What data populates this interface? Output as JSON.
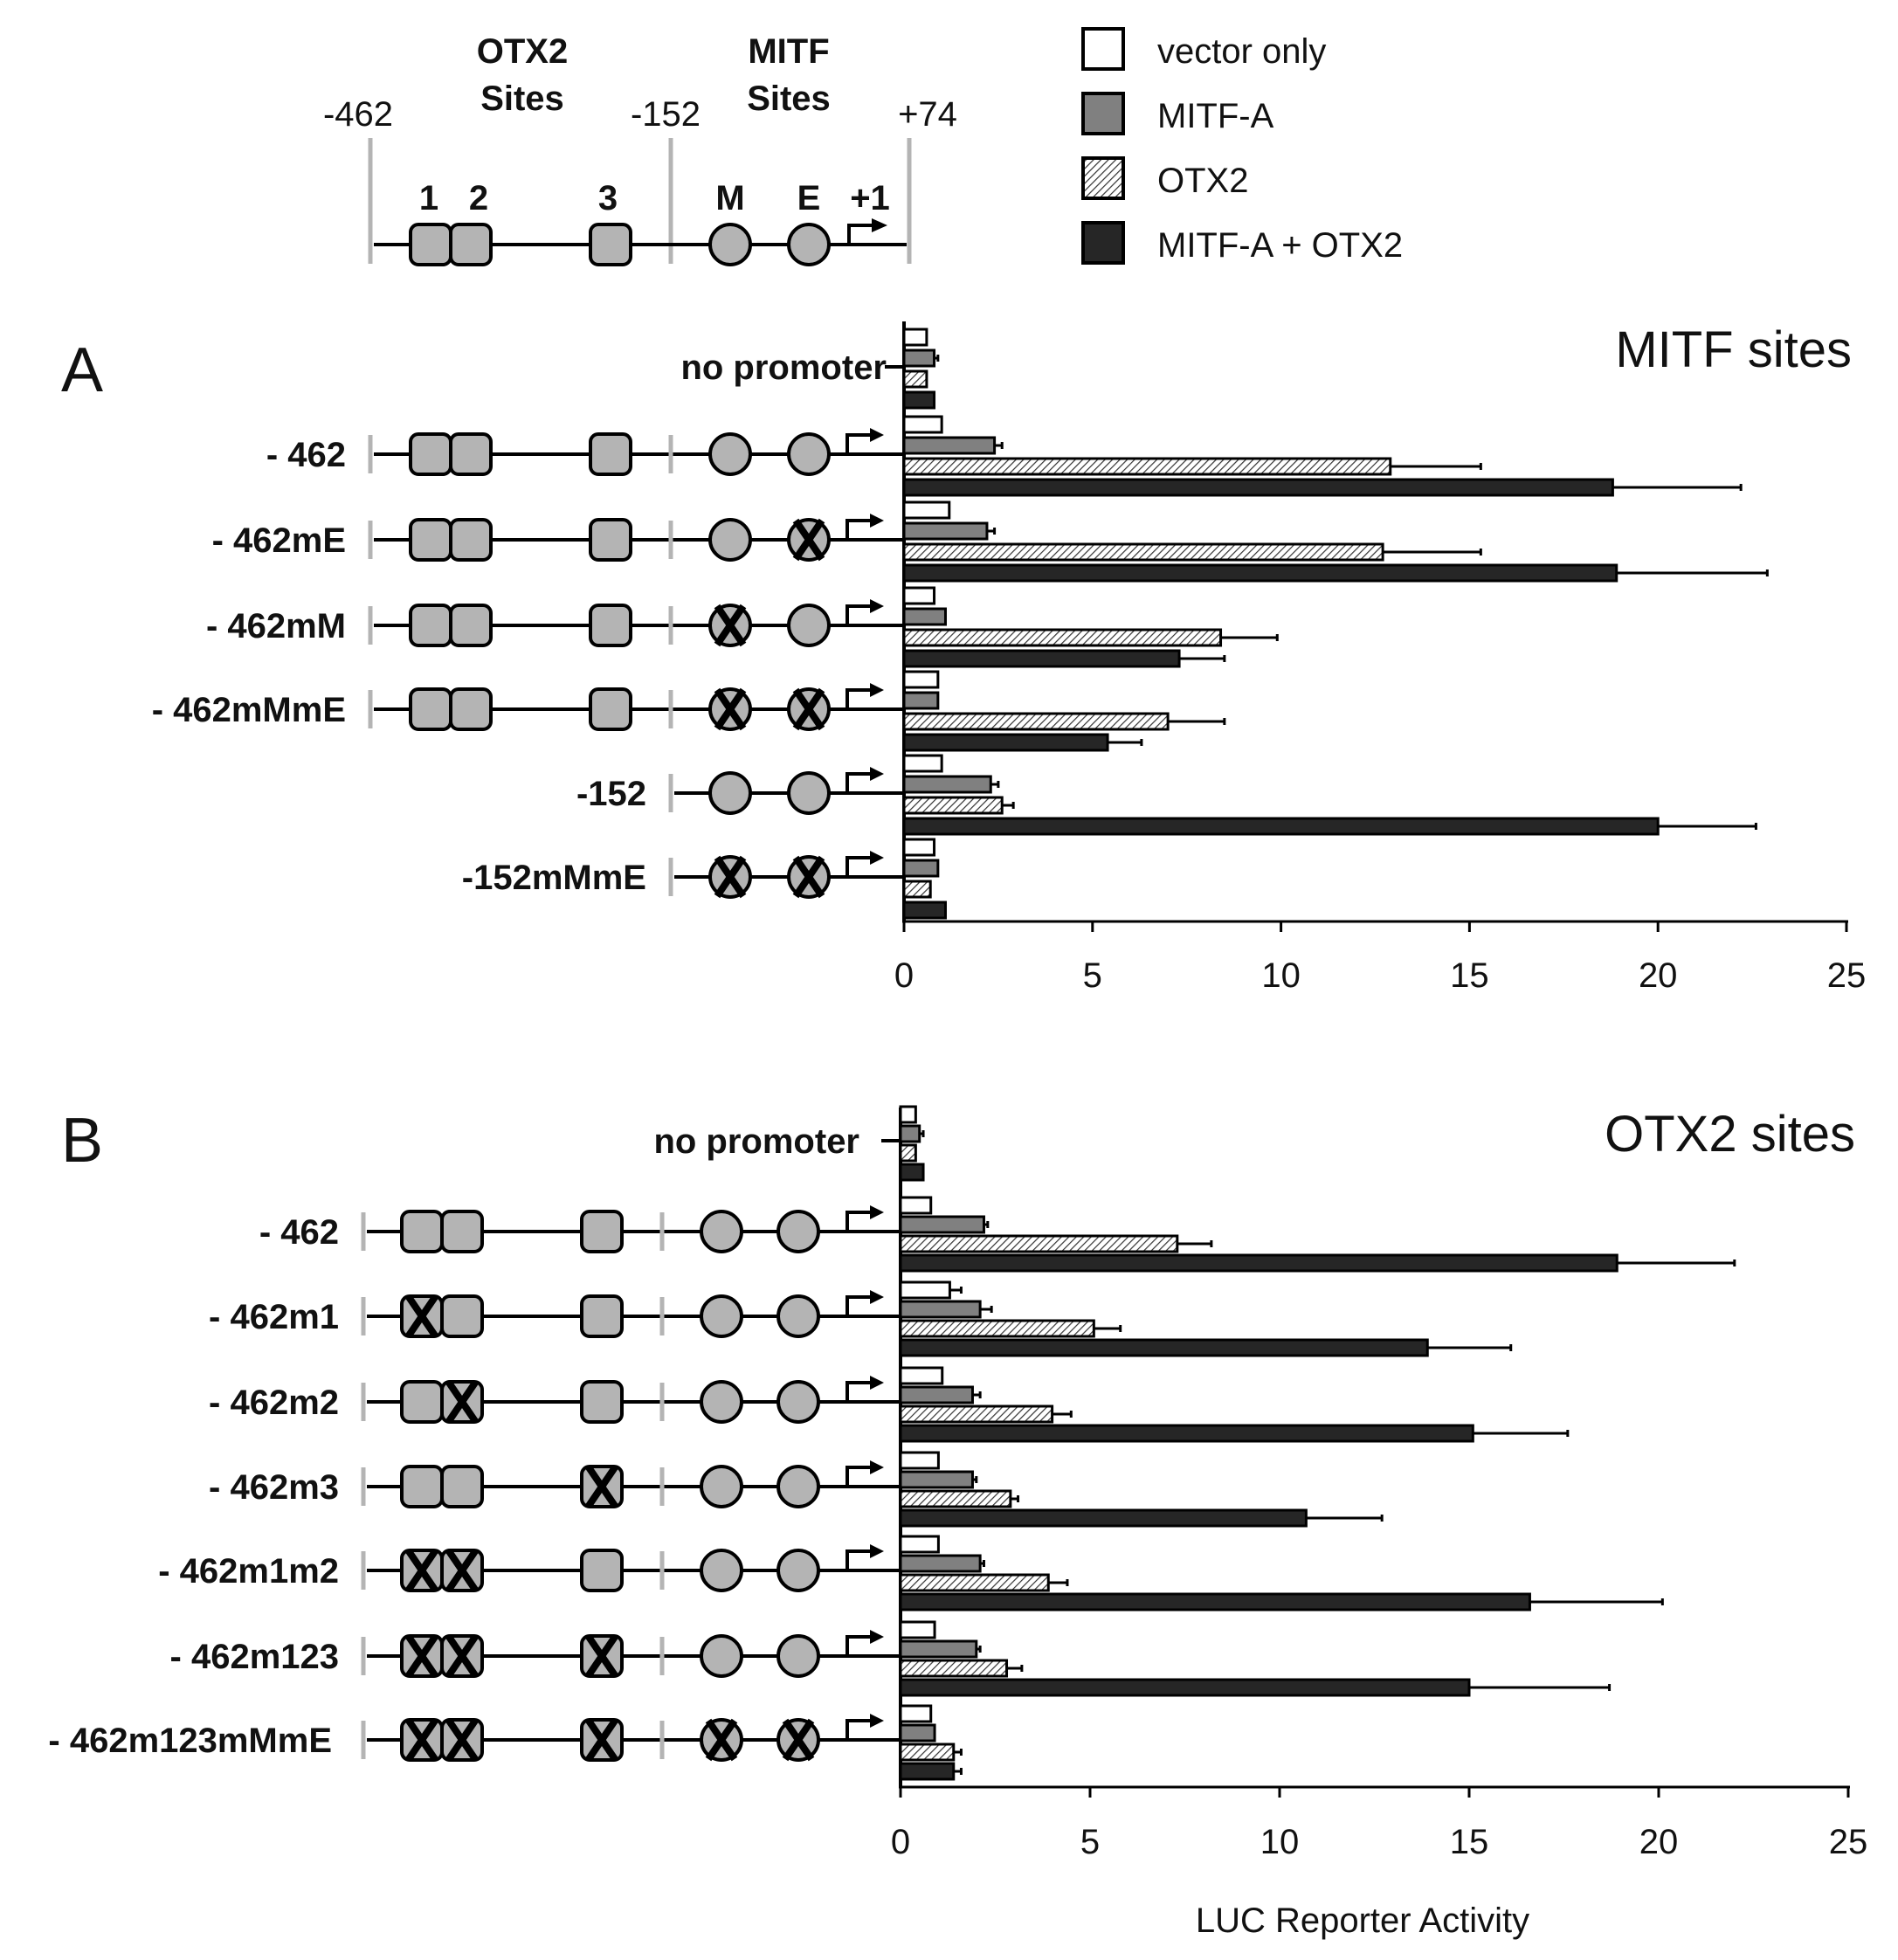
{
  "legend": {
    "items": [
      {
        "label": "vector only",
        "fill": "white"
      },
      {
        "label": "MITF-A",
        "fill": "gray"
      },
      {
        "label": "OTX2",
        "fill": "hatch"
      },
      {
        "label": "MITF-A + OTX2",
        "fill": "dark"
      }
    ]
  },
  "schematic": {
    "otx2_title_line1": "OTX2",
    "otx2_title_line2": "Sites",
    "mitf_title_line1": "MITF",
    "mitf_title_line2": "Sites",
    "pos_462": "-462",
    "pos_152": "-152",
    "pos_74": "+74",
    "site_1": "1",
    "site_2": "2",
    "site_3": "3",
    "site_m": "M",
    "site_e": "E",
    "tss": "+1"
  },
  "colors": {
    "site_fill": "#b4b4b4",
    "mitf_a": "#808080",
    "combo": "#262626",
    "axis": "#000000",
    "marker": "#b4b4b4"
  },
  "axis_label": "LUC Reporter Activity",
  "chart_data": [
    {
      "panel": "A",
      "type": "bar",
      "orientation": "horizontal",
      "title": "MITF sites",
      "xlim": [
        0,
        25
      ],
      "xticks": [
        0,
        5,
        10,
        15,
        20,
        25
      ],
      "series_names": [
        "vector only",
        "MITF-A",
        "OTX2",
        "MITF-A + OTX2"
      ],
      "constructs": [
        {
          "label": "no promoter",
          "kind": "none",
          "mut": [],
          "values": [
            0.6,
            0.8,
            0.6,
            0.8
          ],
          "errors": [
            0.05,
            0.1,
            0.05,
            0.05
          ]
        },
        {
          "label": "- 462",
          "kind": "full",
          "mut": [],
          "values": [
            1.0,
            2.4,
            12.9,
            18.8
          ],
          "errors": [
            0.05,
            0.2,
            2.4,
            3.4
          ]
        },
        {
          "label": "- 462mE",
          "kind": "full",
          "mut": [
            "E"
          ],
          "values": [
            1.2,
            2.2,
            12.7,
            18.9
          ],
          "errors": [
            0.05,
            0.2,
            2.6,
            4.0
          ]
        },
        {
          "label": "- 462mM",
          "kind": "full",
          "mut": [
            "M"
          ],
          "values": [
            0.8,
            1.1,
            8.4,
            7.3
          ],
          "errors": [
            0.05,
            0.05,
            1.5,
            1.2
          ]
        },
        {
          "label": "- 462mMmE",
          "kind": "full",
          "mut": [
            "M",
            "E"
          ],
          "values": [
            0.9,
            0.9,
            7.0,
            5.4
          ],
          "errors": [
            0.05,
            0.05,
            1.5,
            0.9
          ]
        },
        {
          "label": "-152",
          "kind": "short",
          "mut": [],
          "values": [
            1.0,
            2.3,
            2.6,
            20.0
          ],
          "errors": [
            0.05,
            0.2,
            0.3,
            2.6
          ]
        },
        {
          "label": "-152mMmE",
          "kind": "short",
          "mut": [
            "M",
            "E"
          ],
          "values": [
            0.8,
            0.9,
            0.7,
            1.1
          ],
          "errors": [
            0.05,
            0.05,
            0.05,
            0.05
          ]
        }
      ]
    },
    {
      "panel": "B",
      "type": "bar",
      "orientation": "horizontal",
      "title": "OTX2 sites",
      "xlabel": "LUC Reporter Activity",
      "xlim": [
        0,
        25
      ],
      "xticks": [
        0,
        5,
        10,
        15,
        20,
        25
      ],
      "series_names": [
        "vector only",
        "MITF-A",
        "OTX2",
        "MITF-A + OTX2"
      ],
      "constructs": [
        {
          "label": "no promoter",
          "kind": "none",
          "mut": [],
          "values": [
            0.4,
            0.5,
            0.4,
            0.6
          ],
          "errors": [
            0.05,
            0.1,
            0.05,
            0.05
          ]
        },
        {
          "label": "- 462",
          "kind": "full",
          "mut": [],
          "values": [
            0.8,
            2.2,
            7.3,
            18.9
          ],
          "errors": [
            0.05,
            0.1,
            0.9,
            3.1
          ]
        },
        {
          "label": "- 462m1",
          "kind": "full",
          "mut": [
            "1"
          ],
          "values": [
            1.3,
            2.1,
            5.1,
            13.9
          ],
          "errors": [
            0.3,
            0.3,
            0.7,
            2.2
          ]
        },
        {
          "label": "- 462m2",
          "kind": "full",
          "mut": [
            "2"
          ],
          "values": [
            1.1,
            1.9,
            4.0,
            15.1
          ],
          "errors": [
            0.05,
            0.2,
            0.5,
            2.5
          ]
        },
        {
          "label": "- 462m3",
          "kind": "full",
          "mut": [
            "3"
          ],
          "values": [
            1.0,
            1.9,
            2.9,
            10.7
          ],
          "errors": [
            0.05,
            0.1,
            0.2,
            2.0
          ]
        },
        {
          "label": "- 462m1m2",
          "kind": "full",
          "mut": [
            "1",
            "2"
          ],
          "values": [
            1.0,
            2.1,
            3.9,
            16.6
          ],
          "errors": [
            0.05,
            0.1,
            0.5,
            3.5
          ]
        },
        {
          "label": "- 462m123",
          "kind": "full",
          "mut": [
            "1",
            "2",
            "3"
          ],
          "values": [
            0.9,
            2.0,
            2.8,
            15.0
          ],
          "errors": [
            0.05,
            0.1,
            0.4,
            3.7
          ]
        },
        {
          "label": "- 462m123mMmE",
          "kind": "full",
          "mut": [
            "1",
            "2",
            "3",
            "M",
            "E"
          ],
          "values": [
            0.8,
            0.9,
            1.4,
            1.4
          ],
          "errors": [
            0.05,
            0.05,
            0.2,
            0.2
          ]
        }
      ]
    }
  ]
}
